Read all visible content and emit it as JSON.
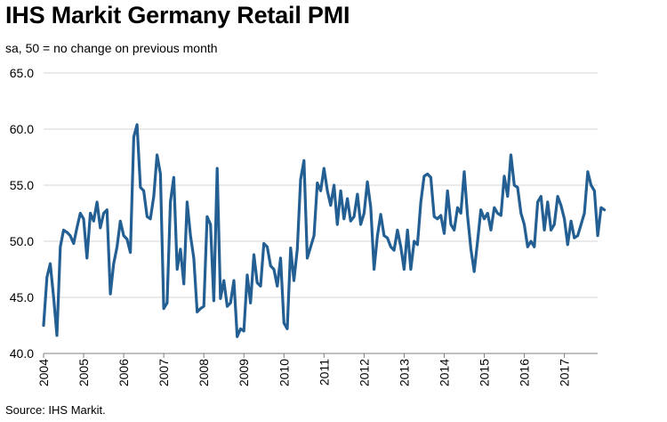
{
  "chart_data": {
    "type": "line",
    "title": "IHS Markit Germany Retail PMI",
    "subtitle": "sa, 50 = no change on previous month",
    "source": "Source: IHS Markit.",
    "xlabel": "",
    "ylabel": "",
    "ylim": [
      40.0,
      65.0
    ],
    "yticks": [
      "65.0",
      "60.0",
      "55.0",
      "50.0",
      "45.0",
      "40.0"
    ],
    "ytick_values": [
      65,
      60,
      55,
      50,
      45,
      40
    ],
    "xlim": [
      2004.0,
      2017.83
    ],
    "xticks": [
      "2004",
      "2005",
      "2006",
      "2007",
      "2008",
      "2009",
      "2010",
      "2011",
      "2012",
      "2013",
      "2014",
      "2015",
      "2016",
      "2017"
    ],
    "grid": "horizontal",
    "line_color": "#235f92",
    "series": [
      {
        "name": "Germany Retail PMI",
        "x_start": 2004.0,
        "step": 0.08333,
        "values": [
          42.5,
          46.8,
          48.0,
          45.0,
          41.6,
          49.5,
          51.0,
          50.8,
          50.5,
          49.8,
          51.2,
          52.5,
          52.0,
          48.5,
          52.5,
          51.8,
          53.5,
          51.2,
          52.5,
          52.8,
          45.3,
          48.0,
          49.5,
          51.8,
          50.5,
          50.2,
          49.0,
          59.3,
          60.4,
          54.8,
          54.5,
          52.2,
          52.0,
          54.0,
          57.7,
          56.0,
          44.0,
          44.5,
          53.5,
          55.7,
          47.5,
          49.3,
          46.2,
          53.5,
          50.5,
          48.5,
          43.7,
          44.0,
          44.2,
          52.2,
          51.5,
          44.7,
          56.5,
          44.9,
          46.5,
          44.2,
          44.5,
          46.5,
          41.5,
          42.2,
          42.0,
          47.0,
          44.5,
          48.8,
          46.3,
          46.0,
          49.8,
          49.5,
          47.8,
          47.5,
          46.0,
          48.5,
          42.7,
          42.2,
          49.4,
          46.5,
          49.3,
          55.5,
          57.2,
          48.5,
          49.5,
          50.5,
          55.2,
          54.5,
          56.5,
          54.5,
          53.2,
          55.0,
          51.5,
          54.5,
          52.0,
          53.8,
          51.8,
          52.2,
          54.2,
          51.5,
          52.5,
          55.3,
          53.0,
          47.5,
          50.5,
          52.4,
          50.5,
          50.3,
          49.5,
          49.2,
          51.0,
          49.5,
          47.5,
          51.0,
          47.5,
          50.0,
          49.7,
          53.5,
          55.8,
          56.0,
          55.7,
          52.2,
          52.0,
          52.3,
          50.7,
          54.5,
          51.5,
          51.0,
          53.0,
          52.5,
          56.2,
          52.3,
          49.3,
          47.3,
          50.0,
          52.8,
          52.0,
          52.5,
          51.0,
          53.0,
          52.5,
          52.3,
          55.8,
          54.0,
          57.7,
          55.0,
          54.8,
          52.5,
          51.5,
          49.5,
          50.0,
          49.5,
          53.5,
          54.0,
          51.0,
          53.5,
          51.0,
          51.5,
          54.0,
          53.2,
          52.0,
          49.7,
          51.8,
          50.3,
          50.5,
          51.5,
          52.5,
          56.2,
          55.0,
          54.5,
          50.5,
          53.0,
          52.8
        ]
      }
    ]
  }
}
